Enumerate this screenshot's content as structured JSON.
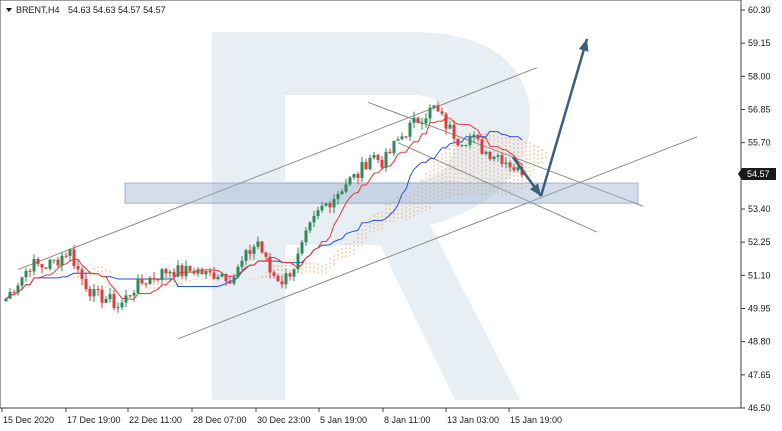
{
  "header": {
    "symbol_label": "BRENT,H4",
    "ohlc_label": "54.63 54.63 54.57 54.57"
  },
  "watermark": "R",
  "current_price_label": "54.57",
  "colors": {
    "bull_candle": "#2e8b57",
    "bear_candle": "#e23b3b",
    "tenkan": "#e53935",
    "kijun": "#2b4fd6",
    "cloud": "#f4a460",
    "channel": "#8c8c8c",
    "support_zone": "#9fb3cf",
    "forecast_arrow": "#3d5f7a",
    "price_tag_bg": "#1a1a1a"
  },
  "chart_data": {
    "type": "candlestick",
    "instrument": "BRENT",
    "timeframe": "H4",
    "y_axis_labels": [
      "60.30",
      "59.15",
      "58.00",
      "56.85",
      "55.70",
      "54.57",
      "53.40",
      "52.25",
      "51.10",
      "49.95",
      "48.80",
      "47.65",
      "46.50"
    ],
    "ylim": [
      46.5,
      60.3
    ],
    "x_axis_labels": [
      "15 Dec 2020",
      "17 Dec 19:00",
      "22 Dec 11:00",
      "28 Dec 07:00",
      "30 Dec 23:00",
      "5 Jan 19:00",
      "8 Jan 11:00",
      "13 Jan 03:00",
      "15 Jan 19:00"
    ],
    "last_price": 54.57,
    "support_zone": [
      53.6,
      54.3
    ],
    "indicators": [
      "Ichimoku Kinko Hyo"
    ],
    "close_path": [
      50.3,
      50.9,
      51.5,
      51.4,
      51.6,
      52.0,
      51.0,
      50.4,
      50.3,
      50.0,
      50.6,
      50.9,
      51.1,
      51.3,
      51.2,
      51.3,
      51.1,
      51.2,
      51.0,
      51.7,
      52.3,
      51.2,
      50.9,
      51.5,
      52.6,
      53.4,
      53.8,
      54.3,
      54.6,
      55.3,
      55.0,
      55.7,
      56.2,
      56.6,
      56.9,
      56.3,
      55.8,
      55.9,
      55.4,
      55.3,
      55.0,
      54.57
    ],
    "forecast": "decline to support zone, then rebound towards 59.15"
  }
}
